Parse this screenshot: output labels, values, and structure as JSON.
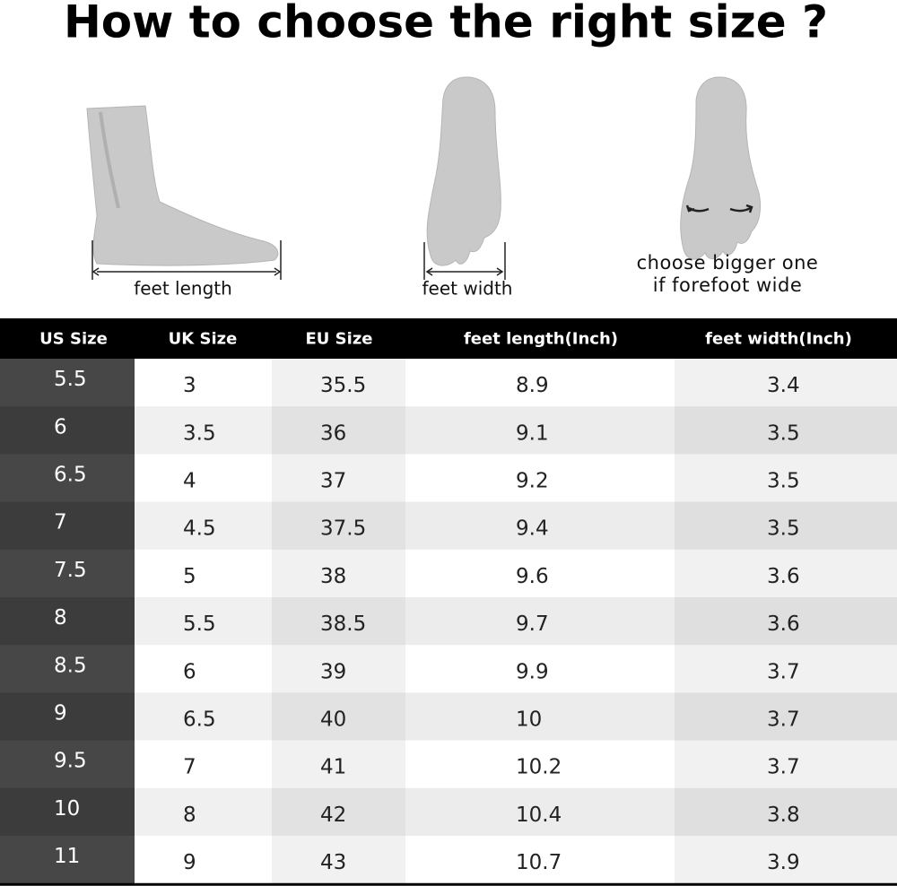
{
  "header": {
    "title": "How to choose the right size ?"
  },
  "illustrations": [
    {
      "caption": "feet length"
    },
    {
      "caption": "feet width"
    },
    {
      "caption_lines": [
        "choose bigger one",
        "if forefoot wide"
      ]
    }
  ],
  "table": {
    "columns": [
      "US Size",
      "UK Size",
      "EU Size",
      "feet length(Inch)",
      "feet width(Inch)"
    ],
    "rows": [
      [
        "5.5",
        "3",
        "35.5",
        "8.9",
        "3.4"
      ],
      [
        "6",
        "3.5",
        "36",
        "9.1",
        "3.5"
      ],
      [
        "6.5",
        "4",
        "37",
        "9.2",
        "3.5"
      ],
      [
        "7",
        "4.5",
        "37.5",
        "9.4",
        "3.5"
      ],
      [
        "7.5",
        "5",
        "38",
        "9.6",
        "3.6"
      ],
      [
        "8",
        "5.5",
        "38.5",
        "9.7",
        "3.6"
      ],
      [
        "8.5",
        "6",
        "39",
        "9.9",
        "3.7"
      ],
      [
        "9",
        "6.5",
        "40",
        "10",
        "3.7"
      ],
      [
        "9.5",
        "7",
        "41",
        "10.2",
        "3.7"
      ],
      [
        "10",
        "8",
        "42",
        "10.4",
        "3.8"
      ],
      [
        "11",
        "9",
        "43",
        "10.7",
        "3.9"
      ]
    ]
  }
}
